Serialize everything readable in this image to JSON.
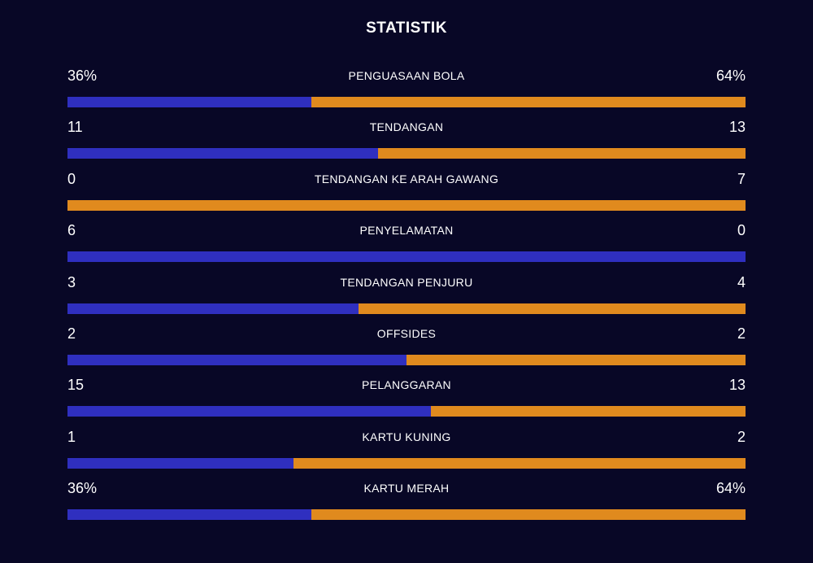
{
  "title": "STATISTIK",
  "colors": {
    "background": "#080726",
    "home": "#2f2fbf",
    "away": "#e08a1e"
  },
  "stats": [
    {
      "label": "PENGUASAAN BOLA",
      "home": "36%",
      "away": "64%",
      "home_share": 0.36
    },
    {
      "label": "TENDANGAN",
      "home": "11",
      "away": "13",
      "home_share": 0.458
    },
    {
      "label": "TENDANGAN KE ARAH GAWANG",
      "home": "0",
      "away": "7",
      "home_share": 0.0
    },
    {
      "label": "PENYELAMATAN",
      "home": "6",
      "away": "0",
      "home_share": 1.0
    },
    {
      "label": "TENDANGAN PENJURU",
      "home": "3",
      "away": "4",
      "home_share": 0.429
    },
    {
      "label": "OFFSIDES",
      "home": "2",
      "away": "2",
      "home_share": 0.5
    },
    {
      "label": "PELANGGARAN",
      "home": "15",
      "away": "13",
      "home_share": 0.536
    },
    {
      "label": "KARTU KUNING",
      "home": "1",
      "away": "2",
      "home_share": 0.333
    },
    {
      "label": "KARTU MERAH",
      "home": "36%",
      "away": "64%",
      "home_share": 0.36
    }
  ]
}
